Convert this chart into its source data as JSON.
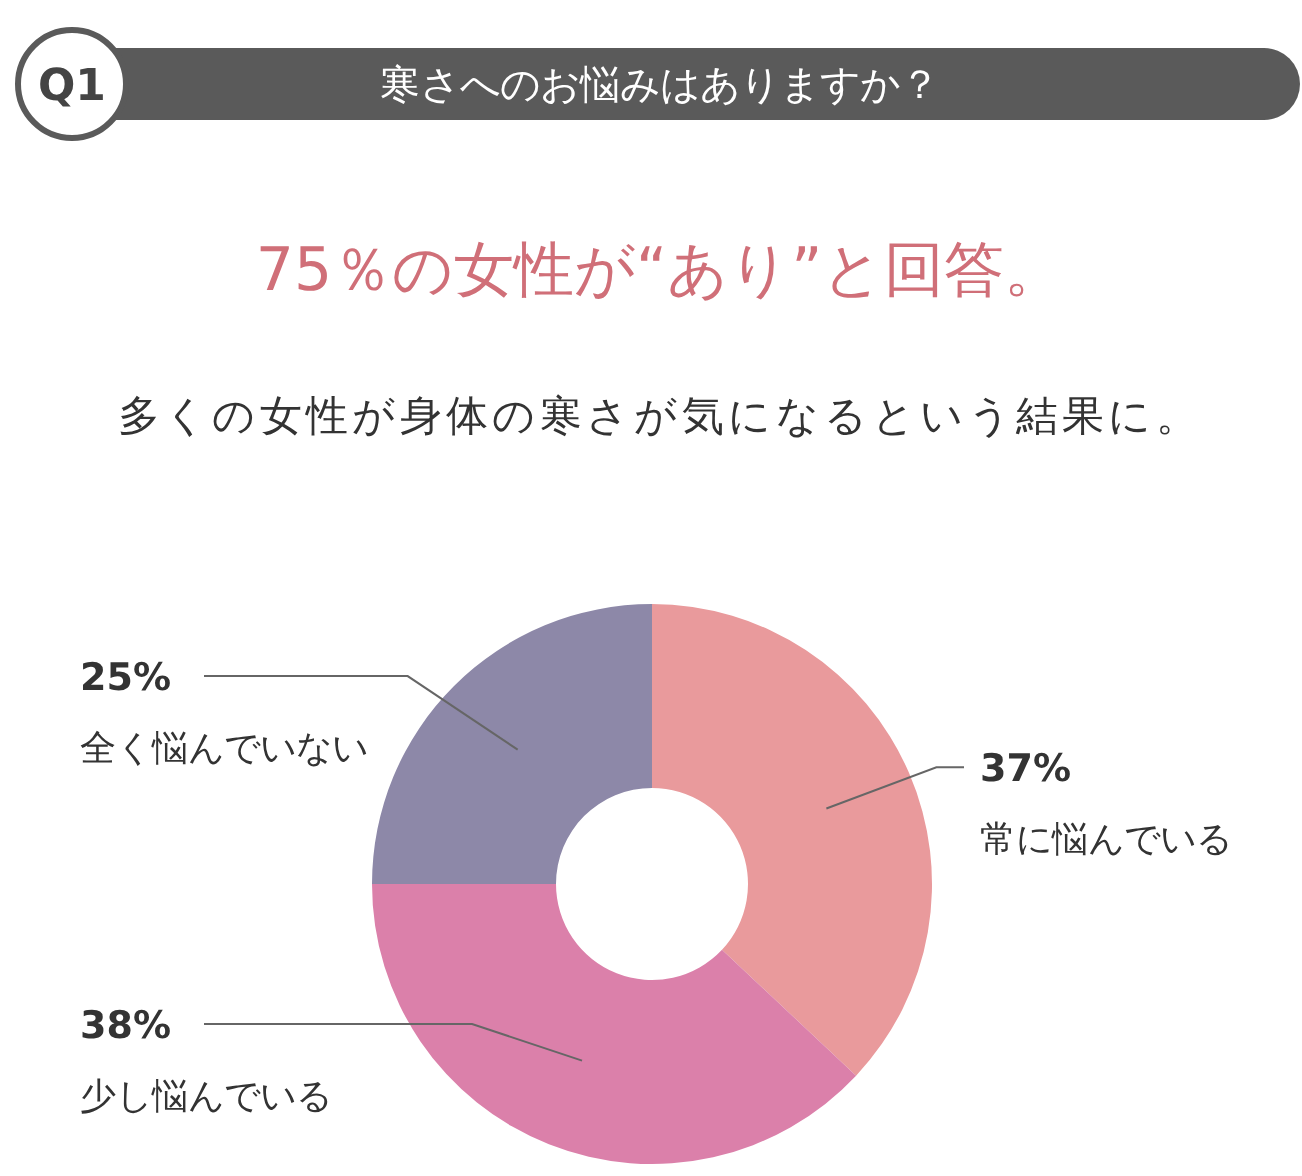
{
  "chart_data": {
    "type": "donut",
    "title": "寒さへのお悩みはありますか？",
    "subtitle": "75％の女性が“あり”と回答。",
    "annotations": [
      "Q1",
      "多くの女性が身体の寒さが気になるという結果に。"
    ],
    "categories": [
      "常に悩んでいる",
      "少し悩んでいる",
      "全く悩んでいない"
    ],
    "values": [
      37,
      38,
      25
    ],
    "value_labels": [
      "37%",
      "38%",
      "25%"
    ],
    "colors": [
      "#e99a9c",
      "#db80aa",
      "#8d88a8"
    ]
  }
}
